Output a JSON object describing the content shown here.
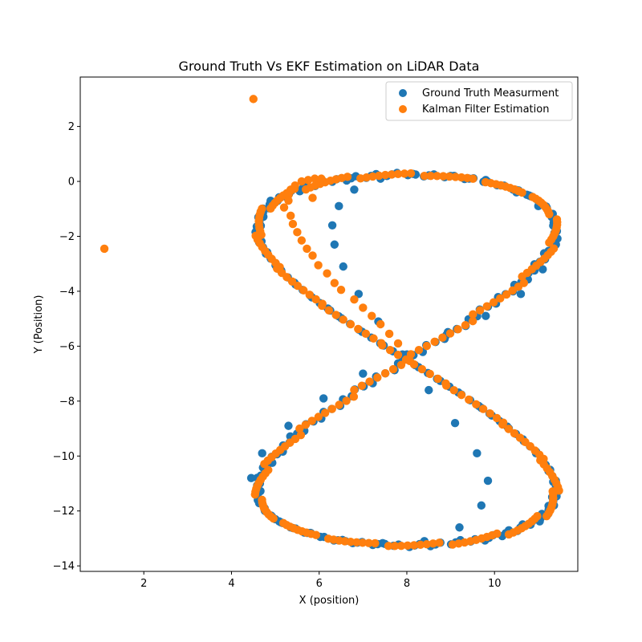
{
  "chart_data": {
    "type": "scatter",
    "title": "Ground Truth Vs EKF Estimation on LiDAR Data",
    "xlabel": "X (position)",
    "ylabel": "Y (Position)",
    "xlim": [
      0.55,
      11.9
    ],
    "ylim": [
      -14.2,
      3.8
    ],
    "xticks": [
      2,
      4,
      6,
      8,
      10
    ],
    "yticks": [
      2,
      0,
      -2,
      -4,
      -6,
      -8,
      -10,
      -12,
      -14
    ],
    "grid": false,
    "legend_position": "top-right",
    "colors": {
      "ground_truth": "#1f77b4",
      "kalman": "#ff7f0e"
    },
    "curve_model": {
      "shape": "figure-eight (lemniscate)",
      "center": [
        8.0,
        -6.5
      ],
      "x_amplitude": 3.4,
      "y_amplitude": 6.75
    },
    "series": [
      {
        "name": "Ground Truth Measurment",
        "color": "#1f77b4",
        "points": [
          [
            11.35,
            -1.5
          ],
          [
            11.0,
            -0.9
          ],
          [
            10.5,
            -0.4
          ],
          [
            9.8,
            0.05
          ],
          [
            9.0,
            0.2
          ],
          [
            8.2,
            0.25
          ],
          [
            7.4,
            0.1
          ],
          [
            6.8,
            -0.3
          ],
          [
            6.45,
            -0.9
          ],
          [
            6.3,
            -1.6
          ],
          [
            6.35,
            -2.3
          ],
          [
            6.55,
            -3.1
          ],
          [
            6.9,
            -4.1
          ],
          [
            7.35,
            -5.1
          ],
          [
            7.9,
            -6.3
          ],
          [
            8.5,
            -7.6
          ],
          [
            9.1,
            -8.8
          ],
          [
            9.6,
            -9.9
          ],
          [
            9.85,
            -10.9
          ],
          [
            9.7,
            -11.8
          ],
          [
            9.2,
            -12.6
          ],
          [
            8.4,
            -13.1
          ],
          [
            7.5,
            -13.2
          ],
          [
            6.6,
            -13.1
          ],
          [
            5.8,
            -12.8
          ],
          [
            5.0,
            -12.3
          ],
          [
            4.6,
            -11.6
          ],
          [
            4.45,
            -10.8
          ],
          [
            4.7,
            -9.9
          ],
          [
            5.3,
            -8.9
          ],
          [
            6.1,
            -7.9
          ],
          [
            7.0,
            -7.0
          ],
          [
            8.0,
            -6.3
          ],
          [
            8.9,
            -5.6
          ],
          [
            9.8,
            -4.9
          ],
          [
            10.6,
            -4.1
          ],
          [
            11.1,
            -3.2
          ],
          [
            11.4,
            -2.3
          ]
        ]
      },
      {
        "name": "Kalman Filter Estimation",
        "color": "#ff7f0e",
        "points": [
          [
            4.5,
            3.0
          ],
          [
            1.1,
            -2.45
          ],
          [
            6.05,
            0.1
          ],
          [
            5.9,
            0.1
          ],
          [
            5.75,
            0.05
          ],
          [
            5.6,
            0.0
          ],
          [
            5.45,
            -0.15
          ],
          [
            5.35,
            -0.3
          ],
          [
            5.3,
            -0.5
          ],
          [
            5.3,
            -0.7
          ],
          [
            5.2,
            -0.95
          ],
          [
            5.35,
            -1.25
          ],
          [
            5.4,
            -1.55
          ],
          [
            5.5,
            -1.85
          ],
          [
            5.6,
            -2.15
          ],
          [
            5.72,
            -2.45
          ],
          [
            5.85,
            -2.7
          ],
          [
            5.98,
            -3.05
          ],
          [
            6.18,
            -3.35
          ],
          [
            6.35,
            -3.7
          ],
          [
            6.5,
            -3.95
          ],
          [
            5.85,
            -0.6
          ],
          [
            6.8,
            -4.3
          ],
          [
            7.0,
            -4.6
          ],
          [
            7.2,
            -4.9
          ],
          [
            7.4,
            -5.2
          ],
          [
            7.6,
            -5.55
          ],
          [
            7.8,
            -5.9
          ]
        ]
      }
    ]
  }
}
